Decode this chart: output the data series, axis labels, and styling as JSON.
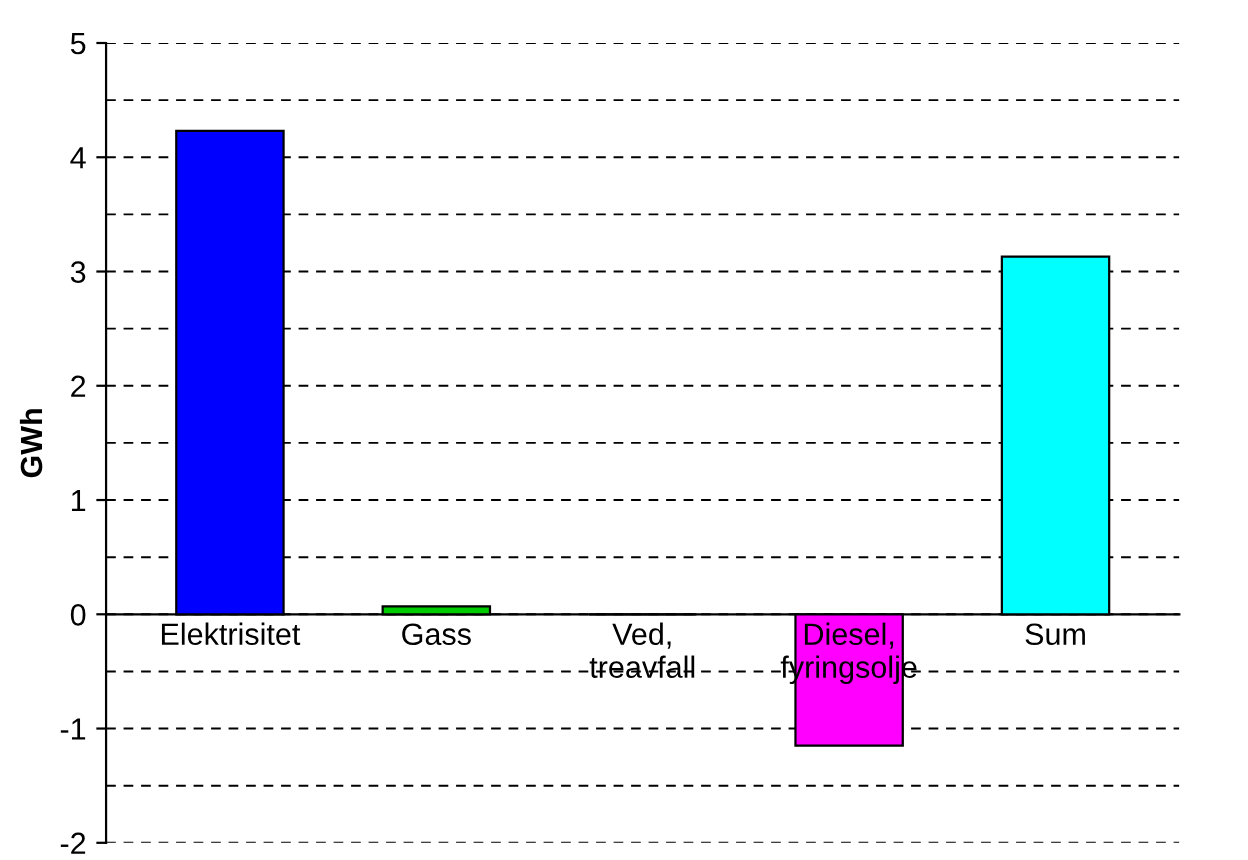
{
  "chart_data": {
    "type": "bar",
    "ylabel": "GWh",
    "categories": [
      "Elektrisitet",
      "Gass",
      "Ved,\ntreavfall",
      "Diesel,\nfyringsolje",
      "Sum"
    ],
    "values": [
      4.23,
      0.07,
      0,
      -1.15,
      3.13
    ],
    "colors": [
      "#0000ff",
      "#00cc00",
      "#808080",
      "#ff00ff",
      "#00ffff"
    ],
    "ylim": [
      -2,
      5
    ],
    "yticks": [
      -2,
      {
        "value": -1.5,
        "label": null
      },
      -1,
      {
        "value": -0.5,
        "label": null
      },
      0,
      {
        "value": 0.5,
        "label": null
      },
      1,
      {
        "value": 1.5,
        "label": null
      },
      2,
      {
        "value": 2.5,
        "label": null
      },
      3,
      {
        "value": 3.5,
        "label": null
      },
      4,
      {
        "value": 4.5,
        "label": null
      },
      5
    ],
    "grid": "y"
  }
}
